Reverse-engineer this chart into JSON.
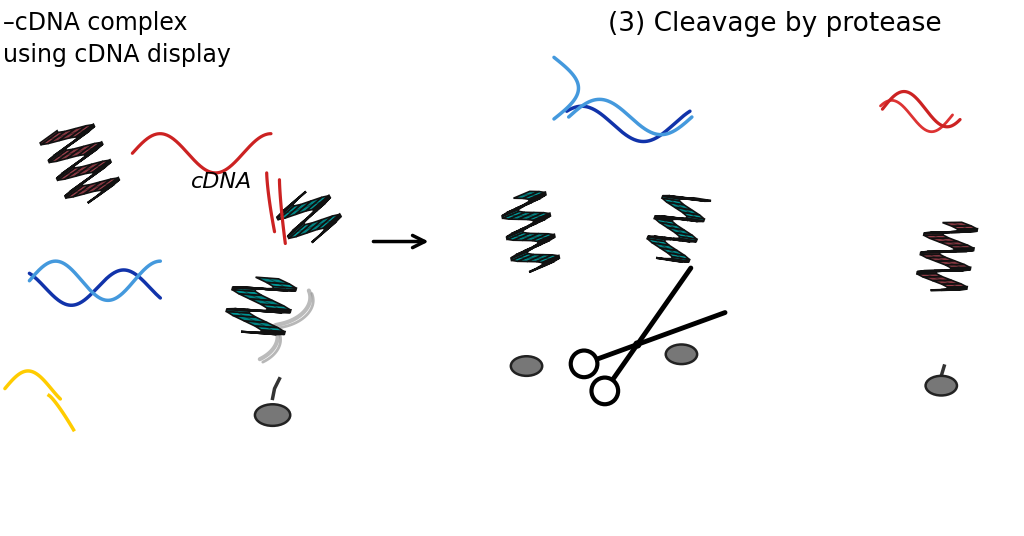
{
  "title_left": "–cDNA complex\nusing cDNA display",
  "title_right": "(3) Cleavage by protease",
  "background_color": "#ffffff",
  "cdna_label": "cDNA",
  "helix_cyan": "#00E5E5",
  "helix_cyan_dark": "#00AAAA",
  "helix_red": "#E86070",
  "helix_red_dark": "#C03040",
  "helix_red_light": "#F09090",
  "dna_blue": "#4499DD",
  "dna_dark_blue": "#1133AA",
  "dna_red": "#CC2222",
  "dna_yellow": "#FFCC00",
  "bead_gray": "#777777",
  "helix_outline": "#111111",
  "arrow_color": "#000000"
}
